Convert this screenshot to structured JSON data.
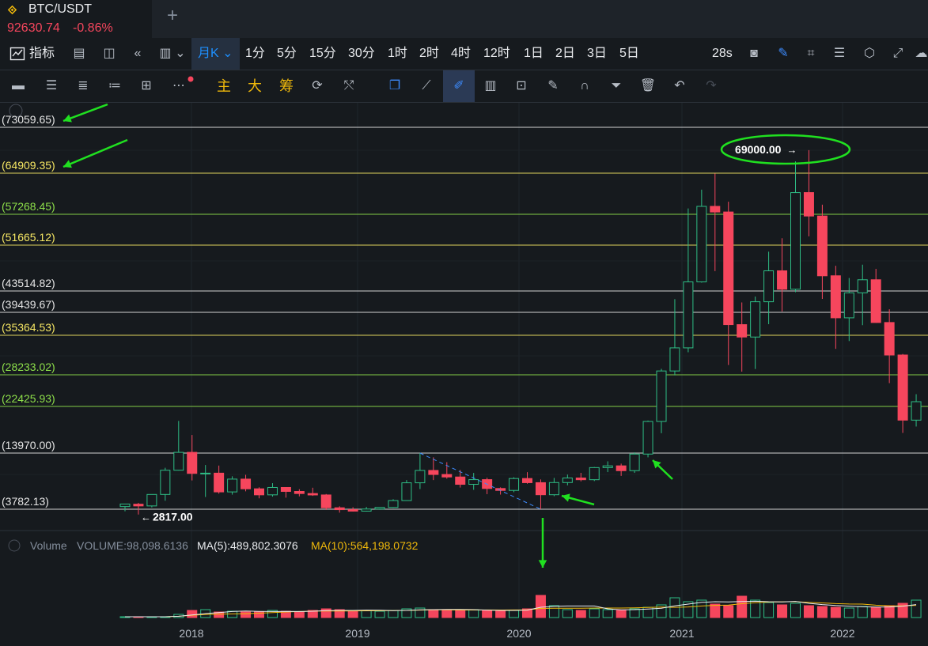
{
  "tab": {
    "title": "BTC/USDT",
    "price": "92630.74",
    "change": "-0.86%",
    "add_label": "+"
  },
  "toolbar": {
    "indicators_label": "指标",
    "interval_active": "月K",
    "intervals": [
      "1分",
      "5分",
      "15分",
      "30分",
      "1时",
      "2时",
      "4时",
      "12时",
      "1日",
      "2日",
      "3日",
      "5日"
    ],
    "refresh": "28s"
  },
  "drawing_tools": {
    "main": "主",
    "big": "大",
    "chip": "筹"
  },
  "colors": {
    "up": "#2ebd85",
    "down": "#f6465d",
    "background": "#161a1e",
    "accent": "#1e90ff",
    "annotation": "#20e020"
  },
  "chart_data": {
    "type": "candlestick",
    "interval": "月K",
    "x_ticks": [
      "2018",
      "2019",
      "2020",
      "2021",
      "2022"
    ],
    "levels": [
      {
        "label": "(73059.65)",
        "value": 73059.65,
        "color": "#e6e6e6"
      },
      {
        "label": "(64909.35)",
        "value": 64909.35,
        "color": "#f5e663"
      },
      {
        "label": "(57268.45)",
        "value": 57268.45,
        "color": "#8ee04a"
      },
      {
        "label": "(51665.12)",
        "value": 51665.12,
        "color": "#f5e663"
      },
      {
        "label": "(43514.82)",
        "value": 43514.82,
        "color": "#e6e6e6"
      },
      {
        "label": "(39439.67)",
        "value": 39439.67,
        "color": "#e6e6e6"
      },
      {
        "label": "(35364.53)",
        "value": 35364.53,
        "color": "#f5e663"
      },
      {
        "label": "(28233.02)",
        "value": 28233.02,
        "color": "#8ee04a"
      },
      {
        "label": "(22425.93)",
        "value": 22425.93,
        "color": "#8ee04a"
      },
      {
        "label": "(13970.00)",
        "value": 13970.0,
        "color": "#e6e6e6"
      },
      {
        "label": "(3782.13)",
        "value": 3782.13,
        "color": "#e6e6e6"
      }
    ],
    "annotations": {
      "high": "69000.00",
      "low": "2817.00"
    },
    "candles": [
      {
        "date": "2017-08",
        "o": 4261,
        "h": 4745,
        "l": 3400,
        "c": 4724
      },
      {
        "date": "2017-09",
        "o": 4690,
        "h": 4940,
        "l": 2817,
        "c": 4378
      },
      {
        "date": "2017-10",
        "o": 4378,
        "h": 6470,
        "l": 4110,
        "c": 6463
      },
      {
        "date": "2017-11",
        "o": 6463,
        "h": 11300,
        "l": 5325,
        "c": 10855
      },
      {
        "date": "2017-12",
        "o": 10855,
        "h": 19798,
        "l": 10800,
        "c": 14100
      },
      {
        "date": "2018-01",
        "o": 14100,
        "h": 17250,
        "l": 9000,
        "c": 10285
      },
      {
        "date": "2018-02",
        "o": 10285,
        "h": 11800,
        "l": 6000,
        "c": 10326
      },
      {
        "date": "2018-03",
        "o": 10326,
        "h": 11700,
        "l": 6600,
        "c": 6923
      },
      {
        "date": "2018-04",
        "o": 6923,
        "h": 9759,
        "l": 6425,
        "c": 9246
      },
      {
        "date": "2018-05",
        "o": 9246,
        "h": 10020,
        "l": 7032,
        "c": 7485
      },
      {
        "date": "2018-06",
        "o": 7485,
        "h": 7770,
        "l": 5755,
        "c": 6391
      },
      {
        "date": "2018-07",
        "o": 6391,
        "h": 8507,
        "l": 6070,
        "c": 7730
      },
      {
        "date": "2018-08",
        "o": 7730,
        "h": 7760,
        "l": 5880,
        "c": 7011
      },
      {
        "date": "2018-09",
        "o": 7011,
        "h": 7410,
        "l": 6111,
        "c": 6626
      },
      {
        "date": "2018-10",
        "o": 6626,
        "h": 7680,
        "l": 6205,
        "c": 6371
      },
      {
        "date": "2018-11",
        "o": 6371,
        "h": 6540,
        "l": 3652,
        "c": 4041
      },
      {
        "date": "2018-12",
        "o": 4041,
        "h": 4312,
        "l": 3156,
        "c": 3702
      },
      {
        "date": "2019-01",
        "o": 3702,
        "h": 4140,
        "l": 3349,
        "c": 3434
      },
      {
        "date": "2019-02",
        "o": 3434,
        "h": 4198,
        "l": 3373,
        "c": 3814
      },
      {
        "date": "2019-03",
        "o": 3814,
        "h": 4140,
        "l": 3670,
        "c": 4105
      },
      {
        "date": "2019-04",
        "o": 4105,
        "h": 5600,
        "l": 4030,
        "c": 5350
      },
      {
        "date": "2019-05",
        "o": 5350,
        "h": 9075,
        "l": 5330,
        "c": 8574
      },
      {
        "date": "2019-06",
        "o": 8574,
        "h": 13970,
        "l": 7440,
        "c": 10817
      },
      {
        "date": "2019-07",
        "o": 10817,
        "h": 13200,
        "l": 9071,
        "c": 10086
      },
      {
        "date": "2019-08",
        "o": 10086,
        "h": 12325,
        "l": 9320,
        "c": 9631
      },
      {
        "date": "2019-09",
        "o": 9631,
        "h": 10905,
        "l": 7710,
        "c": 8299
      },
      {
        "date": "2019-10",
        "o": 8299,
        "h": 10370,
        "l": 7300,
        "c": 9152
      },
      {
        "date": "2019-11",
        "o": 9152,
        "h": 9505,
        "l": 6515,
        "c": 7541
      },
      {
        "date": "2019-12",
        "o": 7541,
        "h": 7750,
        "l": 6435,
        "c": 7195
      },
      {
        "date": "2020-01",
        "o": 7195,
        "h": 9578,
        "l": 6871,
        "c": 9352
      },
      {
        "date": "2020-02",
        "o": 9352,
        "h": 10500,
        "l": 8410,
        "c": 8600
      },
      {
        "date": "2020-03",
        "o": 8600,
        "h": 9188,
        "l": 3782,
        "c": 6410
      },
      {
        "date": "2020-04",
        "o": 6410,
        "h": 9460,
        "l": 6150,
        "c": 8620
      },
      {
        "date": "2020-05",
        "o": 8620,
        "h": 10067,
        "l": 8117,
        "c": 9448
      },
      {
        "date": "2020-06",
        "o": 9448,
        "h": 10380,
        "l": 8833,
        "c": 9138
      },
      {
        "date": "2020-07",
        "o": 9138,
        "h": 11444,
        "l": 8893,
        "c": 11335
      },
      {
        "date": "2020-08",
        "o": 11335,
        "h": 12468,
        "l": 10518,
        "c": 11650
      },
      {
        "date": "2020-09",
        "o": 11650,
        "h": 12050,
        "l": 9825,
        "c": 10776
      },
      {
        "date": "2020-10",
        "o": 10776,
        "h": 14100,
        "l": 10375,
        "c": 13791
      },
      {
        "date": "2020-11",
        "o": 13791,
        "h": 19863,
        "l": 13195,
        "c": 19700
      },
      {
        "date": "2020-12",
        "o": 19700,
        "h": 29300,
        "l": 17572,
        "c": 28923
      },
      {
        "date": "2021-01",
        "o": 28923,
        "h": 41950,
        "l": 28130,
        "c": 33092
      },
      {
        "date": "2021-02",
        "o": 33092,
        "h": 58352,
        "l": 32296,
        "c": 45135
      },
      {
        "date": "2021-03",
        "o": 45135,
        "h": 61844,
        "l": 45000,
        "c": 58740
      },
      {
        "date": "2021-04",
        "o": 58740,
        "h": 64854,
        "l": 47044,
        "c": 57694
      },
      {
        "date": "2021-05",
        "o": 57694,
        "h": 59592,
        "l": 30000,
        "c": 37253
      },
      {
        "date": "2021-06",
        "o": 37253,
        "h": 41330,
        "l": 28805,
        "c": 35045
      },
      {
        "date": "2021-07",
        "o": 35045,
        "h": 42448,
        "l": 29278,
        "c": 41461
      },
      {
        "date": "2021-08",
        "o": 41461,
        "h": 50500,
        "l": 37332,
        "c": 47100
      },
      {
        "date": "2021-09",
        "o": 47100,
        "h": 52920,
        "l": 39600,
        "c": 43824
      },
      {
        "date": "2021-10",
        "o": 43824,
        "h": 67000,
        "l": 43283,
        "c": 61300
      },
      {
        "date": "2021-11",
        "o": 61300,
        "h": 69000,
        "l": 53256,
        "c": 56950
      },
      {
        "date": "2021-12",
        "o": 56950,
        "h": 59053,
        "l": 42000,
        "c": 46216
      },
      {
        "date": "2022-01",
        "o": 46216,
        "h": 47990,
        "l": 32917,
        "c": 38466
      },
      {
        "date": "2022-02",
        "o": 38466,
        "h": 45821,
        "l": 34322,
        "c": 43160
      },
      {
        "date": "2022-03",
        "o": 43160,
        "h": 48190,
        "l": 37155,
        "c": 45510
      },
      {
        "date": "2022-04",
        "o": 45510,
        "h": 47444,
        "l": 37578,
        "c": 37630
      },
      {
        "date": "2022-05",
        "o": 37630,
        "h": 40023,
        "l": 26700,
        "c": 31801
      },
      {
        "date": "2022-06",
        "o": 31801,
        "h": 31986,
        "l": 17622,
        "c": 19942
      },
      {
        "date": "2022-07",
        "o": 19942,
        "h": 24668,
        "l": 18782,
        "c": 23293
      }
    ],
    "volume": {
      "title": "Volume",
      "vol_label": "VOLUME:98,098.6136",
      "ma5_label": "MA(5):489,802.3076",
      "ma10_label": "MA(10):564,198.0732",
      "ma5_color": "#eaecef",
      "ma10_color": "#f0b90b"
    }
  }
}
